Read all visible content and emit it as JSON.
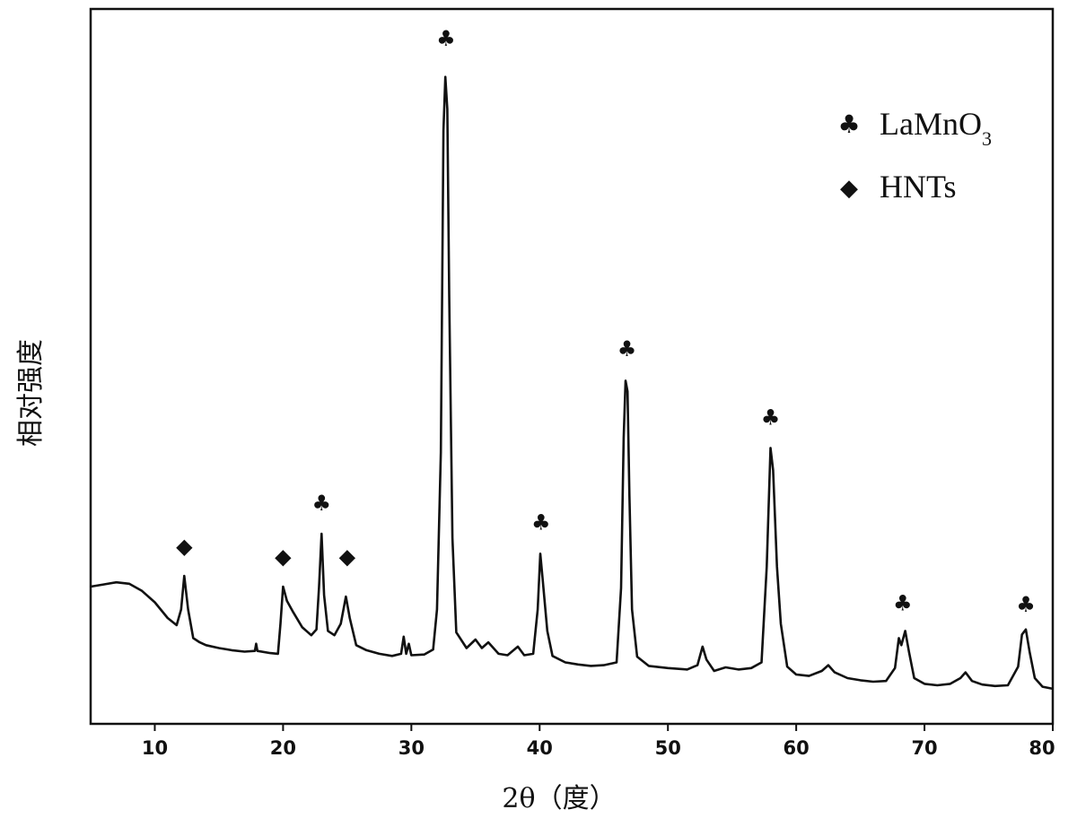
{
  "chart_data": {
    "type": "line",
    "xlabel": "2θ（度）",
    "ylabel": "相对强度",
    "xlim": [
      5,
      80
    ],
    "ylim": [
      0,
      100
    ],
    "x_ticks": [
      10,
      20,
      30,
      40,
      50,
      60,
      70,
      80
    ],
    "y_ticks_shown": false,
    "grid": false,
    "legend": {
      "placement": "top-right",
      "entries": [
        {
          "symbol": "♣",
          "name": "LaMnO3",
          "base": "LaMnO",
          "subscript": "3"
        },
        {
          "symbol": "◆",
          "name": "HNTs"
        }
      ]
    },
    "series": [
      {
        "name": "",
        "color": "#111111",
        "points": [
          [
            5,
            19.2
          ],
          [
            6,
            19.5
          ],
          [
            7,
            19.8
          ],
          [
            8,
            19.6
          ],
          [
            9,
            18.6
          ],
          [
            10,
            17.0
          ],
          [
            11,
            14.8
          ],
          [
            11.7,
            13.8
          ],
          [
            12.05,
            16.0
          ],
          [
            12.3,
            20.7
          ],
          [
            12.6,
            16.0
          ],
          [
            13.0,
            12.0
          ],
          [
            13.5,
            11.4
          ],
          [
            14,
            11.0
          ],
          [
            15,
            10.6
          ],
          [
            16,
            10.3
          ],
          [
            17,
            10.1
          ],
          [
            17.8,
            10.2
          ],
          [
            17.9,
            11.2
          ],
          [
            18.0,
            10.2
          ],
          [
            19,
            9.9
          ],
          [
            19.6,
            9.8
          ],
          [
            19.8,
            14.0
          ],
          [
            20.0,
            19.2
          ],
          [
            20.3,
            17.2
          ],
          [
            20.8,
            15.6
          ],
          [
            21.5,
            13.5
          ],
          [
            22.2,
            12.4
          ],
          [
            22.6,
            13.2
          ],
          [
            22.8,
            19.0
          ],
          [
            23.0,
            26.6
          ],
          [
            23.2,
            18.0
          ],
          [
            23.5,
            13.0
          ],
          [
            24.0,
            12.4
          ],
          [
            24.5,
            14.0
          ],
          [
            24.9,
            17.8
          ],
          [
            25.2,
            14.8
          ],
          [
            25.7,
            11.0
          ],
          [
            26.5,
            10.3
          ],
          [
            27.5,
            9.8
          ],
          [
            28.5,
            9.5
          ],
          [
            29.2,
            9.8
          ],
          [
            29.4,
            12.2
          ],
          [
            29.6,
            9.8
          ],
          [
            29.8,
            11.2
          ],
          [
            30.0,
            9.6
          ],
          [
            31.0,
            9.7
          ],
          [
            31.7,
            10.4
          ],
          [
            32.0,
            16.0
          ],
          [
            32.3,
            38.0
          ],
          [
            32.5,
            83.0
          ],
          [
            32.65,
            90.5
          ],
          [
            32.8,
            86.0
          ],
          [
            32.95,
            60.0
          ],
          [
            33.2,
            26.0
          ],
          [
            33.5,
            12.8
          ],
          [
            34.3,
            10.6
          ],
          [
            35.0,
            11.8
          ],
          [
            35.5,
            10.6
          ],
          [
            36.0,
            11.4
          ],
          [
            36.8,
            9.8
          ],
          [
            37.5,
            9.6
          ],
          [
            38.3,
            10.8
          ],
          [
            38.8,
            9.6
          ],
          [
            39.5,
            9.8
          ],
          [
            39.85,
            16.0
          ],
          [
            40.05,
            23.8
          ],
          [
            40.25,
            20.0
          ],
          [
            40.6,
            13.0
          ],
          [
            41.0,
            9.5
          ],
          [
            42.0,
            8.6
          ],
          [
            43.0,
            8.3
          ],
          [
            44.0,
            8.1
          ],
          [
            45.0,
            8.2
          ],
          [
            46.0,
            8.6
          ],
          [
            46.35,
            19.0
          ],
          [
            46.55,
            40.0
          ],
          [
            46.7,
            48.0
          ],
          [
            46.85,
            46.5
          ],
          [
            47.0,
            32.0
          ],
          [
            47.2,
            16.0
          ],
          [
            47.6,
            9.4
          ],
          [
            48.5,
            8.1
          ],
          [
            50.0,
            7.8
          ],
          [
            51.5,
            7.6
          ],
          [
            52.3,
            8.2
          ],
          [
            52.7,
            10.8
          ],
          [
            53.0,
            9.0
          ],
          [
            53.6,
            7.4
          ],
          [
            54.5,
            7.9
          ],
          [
            55.5,
            7.6
          ],
          [
            56.5,
            7.8
          ],
          [
            57.3,
            8.6
          ],
          [
            57.7,
            22.0
          ],
          [
            58.0,
            38.6
          ],
          [
            58.2,
            35.5
          ],
          [
            58.5,
            22.0
          ],
          [
            58.8,
            14.0
          ],
          [
            59.3,
            8.0
          ],
          [
            60.0,
            6.9
          ],
          [
            61.0,
            6.7
          ],
          [
            62.0,
            7.4
          ],
          [
            62.5,
            8.2
          ],
          [
            63.0,
            7.2
          ],
          [
            64.0,
            6.4
          ],
          [
            65.0,
            6.1
          ],
          [
            66.0,
            5.9
          ],
          [
            67.0,
            6.0
          ],
          [
            67.7,
            7.8
          ],
          [
            68.0,
            12.0
          ],
          [
            68.2,
            11.0
          ],
          [
            68.5,
            13.0
          ],
          [
            68.8,
            10.0
          ],
          [
            69.2,
            6.4
          ],
          [
            70.0,
            5.6
          ],
          [
            71.0,
            5.4
          ],
          [
            72.0,
            5.6
          ],
          [
            72.8,
            6.4
          ],
          [
            73.2,
            7.2
          ],
          [
            73.7,
            6.0
          ],
          [
            74.5,
            5.5
          ],
          [
            75.5,
            5.3
          ],
          [
            76.5,
            5.4
          ],
          [
            77.3,
            8.0
          ],
          [
            77.6,
            12.5
          ],
          [
            77.9,
            13.2
          ],
          [
            78.2,
            10.0
          ],
          [
            78.6,
            6.4
          ],
          [
            79.2,
            5.2
          ],
          [
            80.0,
            4.9
          ]
        ]
      }
    ],
    "peak_markers": [
      {
        "x": 12.3,
        "y": 25.0,
        "symbol": "◆"
      },
      {
        "x": 20.0,
        "y": 23.5,
        "symbol": "◆"
      },
      {
        "x": 23.0,
        "y": 31.0,
        "symbol": "♣"
      },
      {
        "x": 25.0,
        "y": 23.5,
        "symbol": "◆"
      },
      {
        "x": 32.7,
        "y": 96.0,
        "symbol": "♣"
      },
      {
        "x": 40.1,
        "y": 28.3,
        "symbol": "♣"
      },
      {
        "x": 46.8,
        "y": 52.6,
        "symbol": "♣"
      },
      {
        "x": 58.0,
        "y": 43.0,
        "symbol": "♣"
      },
      {
        "x": 68.3,
        "y": 17.0,
        "symbol": "♣"
      },
      {
        "x": 77.9,
        "y": 16.8,
        "symbol": "♣"
      }
    ]
  }
}
